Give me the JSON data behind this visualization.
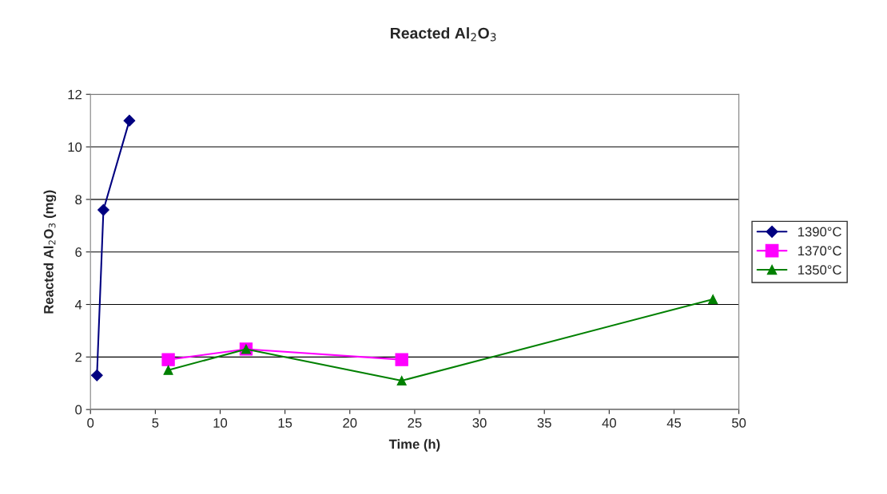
{
  "chart_data": {
    "type": "line",
    "title": "Reacted Al$_{2}$O$_{3}$",
    "xlabel": "Time (h)",
    "ylabel": "Reacted Al$_{2}$O$_{3}$ (mg)",
    "xlim": [
      0,
      50
    ],
    "xticks": [
      0,
      5,
      10,
      15,
      20,
      25,
      30,
      35,
      40,
      45,
      50
    ],
    "ylim": [
      0,
      12
    ],
    "yticks": [
      0,
      2,
      4,
      6,
      8,
      10,
      12
    ],
    "grid": "y",
    "legend": "right",
    "line_style": "solid",
    "series": [
      {
        "name": "1390°C",
        "color": "#000080",
        "marker": "diamond",
        "x": [
          0.5,
          1,
          3
        ],
        "values": [
          1.3,
          7.6,
          11
        ]
      },
      {
        "name": "1370°C",
        "color": "#ff00ff",
        "marker": "square",
        "x": [
          6,
          12,
          24
        ],
        "values": [
          1.9,
          2.3,
          1.9
        ]
      },
      {
        "name": "1350°C",
        "color": "#008000",
        "marker": "triangle",
        "x": [
          6,
          12,
          24,
          48
        ],
        "values": [
          1.5,
          2.3,
          1.1,
          4.2
        ]
      }
    ]
  }
}
